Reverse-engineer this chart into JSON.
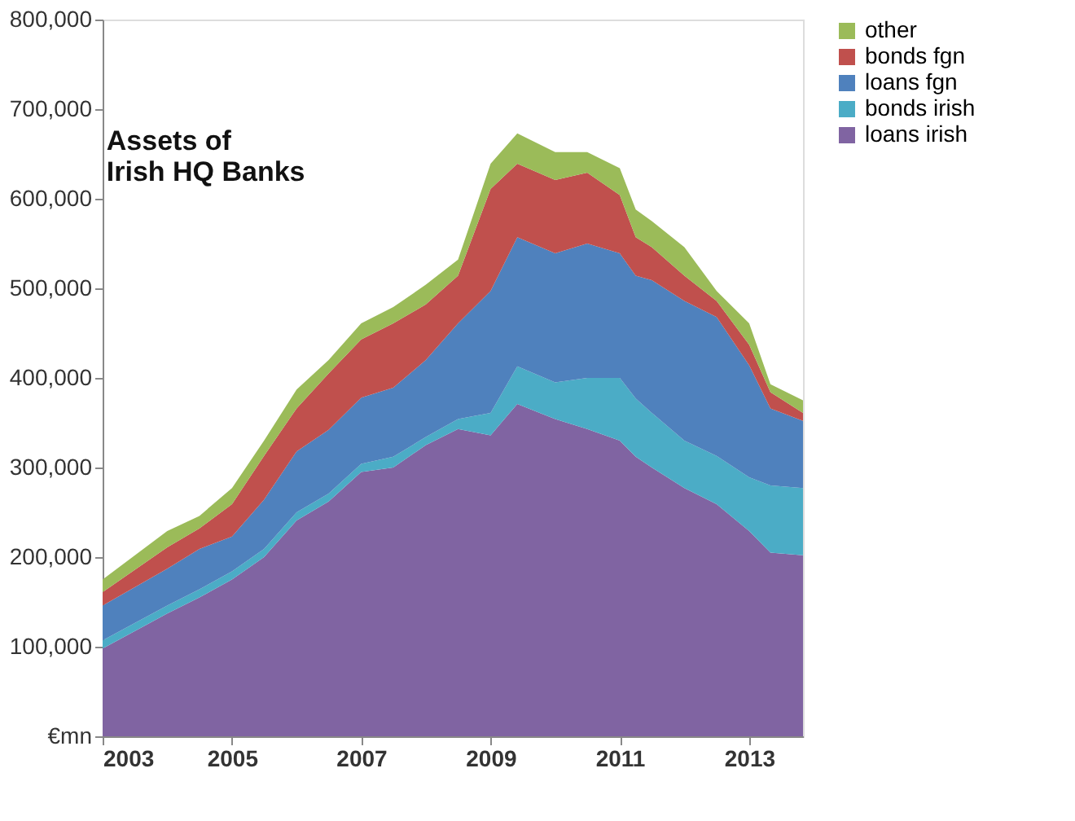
{
  "chart_data": {
    "type": "area",
    "title": [
      "Assets of",
      "Irish HQ Banks"
    ],
    "stacked": true,
    "legend": "right",
    "grid": false,
    "x": [
      "2003-01",
      "2004-01",
      "2004-07",
      "2005-01",
      "2005-07",
      "2006-01",
      "2006-07",
      "2007-01",
      "2007-07",
      "2008-01",
      "2008-07",
      "2009-01",
      "2009-06",
      "2010-01",
      "2010-07",
      "2011-01",
      "2011-04",
      "2011-07",
      "2012-01",
      "2012-07",
      "2013-01",
      "2013-05",
      "2013-11"
    ],
    "xlim": [
      "2003-01",
      "2013-11"
    ],
    "xticks": [
      "2003",
      "2005",
      "2007",
      "2009",
      "2011",
      "2013"
    ],
    "ylim": [
      0,
      800000
    ],
    "yticks": [
      {
        "value": 0,
        "label": "€mn"
      },
      {
        "value": 100000,
        "label": "100,000"
      },
      {
        "value": 200000,
        "label": "200,000"
      },
      {
        "value": 300000,
        "label": "300,000"
      },
      {
        "value": 400000,
        "label": "400,000"
      },
      {
        "value": 500000,
        "label": "500,000"
      },
      {
        "value": 600000,
        "label": "600,000"
      },
      {
        "value": 700000,
        "label": "700,000"
      },
      {
        "value": 800000,
        "label": "800,000"
      }
    ],
    "series": [
      {
        "name": "loans irish",
        "color": "#8064a2",
        "values": [
          98000,
          137000,
          155000,
          175000,
          200000,
          241000,
          262000,
          295000,
          300000,
          325000,
          343000,
          336000,
          371000,
          354000,
          343000,
          330000,
          312000,
          300000,
          277000,
          259000,
          229000,
          205000,
          202000
        ]
      },
      {
        "name": "bonds irish",
        "color": "#4bacc6",
        "values": [
          9000,
          9000,
          9000,
          9000,
          9000,
          9000,
          9000,
          9000,
          12000,
          9000,
          11000,
          25000,
          42000,
          41000,
          57000,
          70000,
          65000,
          61000,
          53000,
          54000,
          60000,
          75000,
          75000
        ]
      },
      {
        "name": "loans fgn",
        "color": "#4f81bd",
        "values": [
          39000,
          41000,
          45000,
          39000,
          55000,
          68000,
          71000,
          74000,
          77000,
          86000,
          107000,
          136000,
          144000,
          144000,
          150000,
          139000,
          137000,
          148000,
          156000,
          155000,
          125000,
          86000,
          75000
        ]
      },
      {
        "name": "bonds fgn",
        "color": "#c0504d",
        "values": [
          15000,
          24000,
          23000,
          36000,
          49000,
          48000,
          63000,
          65000,
          72000,
          62000,
          53000,
          114000,
          82000,
          82000,
          79000,
          65000,
          43000,
          37000,
          28000,
          18000,
          23000,
          18000,
          9000
        ]
      },
      {
        "name": "other",
        "color": "#9bbb59",
        "values": [
          14000,
          18000,
          14000,
          18000,
          17000,
          21000,
          15000,
          18000,
          18000,
          22000,
          18000,
          28000,
          34000,
          31000,
          23000,
          30000,
          31000,
          29000,
          32000,
          11000,
          24000,
          9000,
          14000
        ]
      }
    ]
  }
}
